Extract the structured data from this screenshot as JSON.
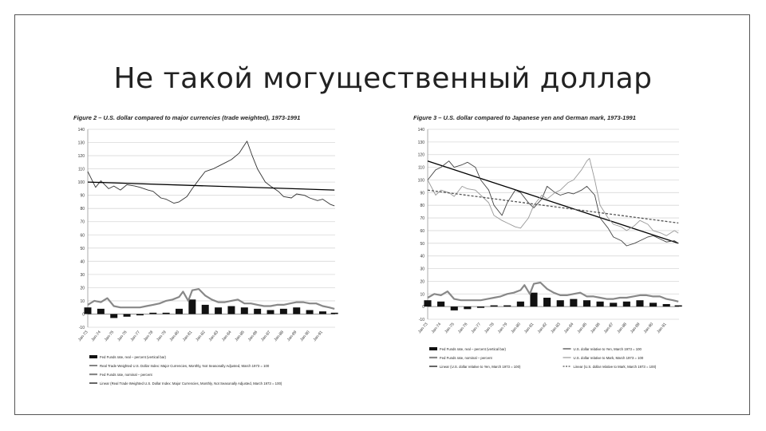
{
  "slide": {
    "title": "Не такой могущественный доллар"
  },
  "chart_data": [
    {
      "type": "line",
      "title": "Figure 2 – U.S. dollar compared to major currencies (trade weighted), 1973-1991",
      "y_ticks": [
        "140",
        "130",
        "120",
        "110",
        "100",
        "90",
        "80",
        "70",
        "60",
        "50",
        "40",
        "30",
        "20",
        "10",
        "0",
        "-10"
      ],
      "ylim": [
        -10,
        140
      ],
      "x_ticks": [
        "Jan-73",
        "Jan-74",
        "Jan-75",
        "Jan-76",
        "Jan-77",
        "Jan-78",
        "Jan-79",
        "Jan-80",
        "Jan-81",
        "Jan-82",
        "Jan-83",
        "Jan-84",
        "Jan-85",
        "Jan-86",
        "Jan-87",
        "Jan-88",
        "Jan-89",
        "Jan-90",
        "Jan-91"
      ],
      "series": [
        {
          "name": "Fed Funds rate, real – percent (vertical bar)",
          "kind": "bar",
          "color": "#111111",
          "x": [
            1973.0,
            1974.0,
            1975.0,
            1976.0,
            1977.0,
            1978.0,
            1979.0,
            1980.0,
            1981.0,
            1982.0,
            1983.0,
            1984.0,
            1985.0,
            1986.0,
            1987.0,
            1988.0,
            1989.0,
            1990.0,
            1991.0,
            1991.9
          ],
          "y": [
            5,
            4,
            -3,
            -2,
            -1,
            1,
            1,
            4,
            11,
            7,
            5,
            6,
            5,
            4,
            3,
            4,
            5,
            3,
            2,
            1
          ]
        },
        {
          "name": "Real Trade Weighted U.S. Dollar Index: Major Currencies, Monthly, Not Seasonally Adjusted, March 1973 = 100",
          "kind": "line",
          "color": "#333333",
          "x": [
            1973.0,
            1973.6,
            1974.0,
            1974.6,
            1975.0,
            1975.5,
            1976.0,
            1976.6,
            1977.0,
            1977.6,
            1978.0,
            1978.6,
            1979.0,
            1979.6,
            1980.0,
            1980.6,
            1981.0,
            1981.6,
            1982.0,
            1982.6,
            1983.0,
            1983.6,
            1984.0,
            1984.6,
            1985.0,
            1985.2,
            1985.6,
            1986.0,
            1986.6,
            1987.0,
            1987.6,
            1988.0,
            1988.6,
            1989.0,
            1989.6,
            1990.0,
            1990.6,
            1991.0,
            1991.6,
            1991.9
          ],
          "y": [
            108,
            96,
            101,
            95,
            97,
            94,
            98,
            97,
            96,
            94,
            93,
            88,
            87,
            84,
            85,
            89,
            95,
            103,
            108,
            110,
            112,
            115,
            117,
            122,
            128,
            131,
            120,
            110,
            100,
            97,
            93,
            89,
            88,
            91,
            90,
            88,
            86,
            87,
            83,
            82
          ]
        },
        {
          "name": "Fed Funds rate, nominal – percent",
          "kind": "line",
          "color": "#888888",
          "x": [
            1973.0,
            1973.5,
            1974.0,
            1974.5,
            1975.0,
            1975.5,
            1976.0,
            1976.5,
            1977.0,
            1977.5,
            1978.0,
            1978.5,
            1979.0,
            1979.5,
            1980.0,
            1980.3,
            1980.7,
            1981.0,
            1981.5,
            1982.0,
            1982.5,
            1983.0,
            1983.5,
            1984.0,
            1984.5,
            1985.0,
            1985.5,
            1986.0,
            1986.5,
            1987.0,
            1987.5,
            1988.0,
            1988.5,
            1989.0,
            1989.5,
            1990.0,
            1990.5,
            1991.0,
            1991.5,
            1991.9
          ],
          "y": [
            7,
            10,
            9,
            12,
            6,
            5,
            5,
            5,
            5,
            6,
            7,
            8,
            10,
            11,
            13,
            17,
            10,
            18,
            19,
            14,
            11,
            9,
            9,
            10,
            11,
            8,
            8,
            7,
            6,
            6,
            7,
            7,
            8,
            9,
            9,
            8,
            8,
            6,
            5,
            4
          ]
        },
        {
          "name": "Linear (Real Trade Weighted U.S. Dollar Index: Major Currencies, Monthly, Not Seasonally Adjusted, March 1973 = 100)",
          "kind": "line",
          "color": "#000000",
          "x": [
            1973.0,
            1991.9
          ],
          "y": [
            100,
            94
          ]
        }
      ]
    },
    {
      "type": "line",
      "title": "Figure 3 – U.S. dollar compared to Japanese yen and German mark, 1973-1991",
      "y_ticks": [
        "140",
        "130",
        "120",
        "110",
        "100",
        "90",
        "80",
        "70",
        "60",
        "50",
        "40",
        "30",
        "20",
        "10",
        "0",
        "-10"
      ],
      "ylim": [
        -10,
        140
      ],
      "x_ticks": [
        "Jan-73",
        "Jan-74",
        "Jan-75",
        "Jan-76",
        "Jan-77",
        "Jan-78",
        "Jan-79",
        "Jan-80",
        "Jan-81",
        "Jan-82",
        "Jan-83",
        "Jan-84",
        "Jan-85",
        "Jan-86",
        "Jan-87",
        "Jan-88",
        "Jan-89",
        "Jan-90",
        "Jan-91"
      ],
      "series": [
        {
          "name": "Fed Funds rate, real – percent (vertical bar)",
          "kind": "bar",
          "color": "#111111",
          "x": [
            1973.0,
            1974.0,
            1975.0,
            1976.0,
            1977.0,
            1978.0,
            1979.0,
            1980.0,
            1981.0,
            1982.0,
            1983.0,
            1984.0,
            1985.0,
            1986.0,
            1987.0,
            1988.0,
            1989.0,
            1990.0,
            1991.0,
            1991.9
          ],
          "y": [
            5,
            4,
            -3,
            -2,
            -1,
            1,
            1,
            4,
            11,
            7,
            5,
            6,
            5,
            4,
            3,
            4,
            5,
            3,
            2,
            1
          ]
        },
        {
          "name": "Fed Funds rate, nominal – percent",
          "kind": "line",
          "color": "#888888",
          "x": [
            1973.0,
            1973.5,
            1974.0,
            1974.5,
            1975.0,
            1975.5,
            1976.0,
            1976.5,
            1977.0,
            1977.5,
            1978.0,
            1978.5,
            1979.0,
            1979.5,
            1980.0,
            1980.3,
            1980.7,
            1981.0,
            1981.5,
            1982.0,
            1982.5,
            1983.0,
            1983.5,
            1984.0,
            1984.5,
            1985.0,
            1985.5,
            1986.0,
            1986.5,
            1987.0,
            1987.5,
            1988.0,
            1988.5,
            1989.0,
            1989.5,
            1990.0,
            1990.5,
            1991.0,
            1991.5,
            1991.9
          ],
          "y": [
            7,
            10,
            9,
            12,
            6,
            5,
            5,
            5,
            5,
            6,
            7,
            8,
            10,
            11,
            13,
            17,
            10,
            18,
            19,
            14,
            11,
            9,
            9,
            10,
            11,
            8,
            8,
            7,
            6,
            6,
            7,
            7,
            8,
            9,
            9,
            8,
            8,
            6,
            5,
            4
          ]
        },
        {
          "name": "Linear (U.S. dollar relative to Yen, March 1973 = 100)",
          "kind": "line",
          "color": "#000000",
          "x": [
            1973.0,
            1991.9
          ],
          "y": [
            115,
            50
          ]
        },
        {
          "name": "U.S. dollar relative to Yen, March 1973 = 100",
          "kind": "line",
          "color": "#444444",
          "x": [
            1973.0,
            1973.6,
            1974.0,
            1974.6,
            1975.0,
            1975.6,
            1976.0,
            1976.6,
            1977.0,
            1977.6,
            1978.0,
            1978.6,
            1979.0,
            1979.6,
            1980.0,
            1980.6,
            1981.0,
            1981.6,
            1982.0,
            1982.6,
            1983.0,
            1983.6,
            1984.0,
            1984.6,
            1985.0,
            1985.6,
            1986.0,
            1986.6,
            1987.0,
            1987.6,
            1988.0,
            1988.6,
            1989.0,
            1989.6,
            1990.0,
            1990.6,
            1991.0,
            1991.6,
            1991.9
          ],
          "y": [
            100,
            108,
            110,
            115,
            110,
            112,
            114,
            110,
            100,
            92,
            80,
            72,
            82,
            92,
            90,
            82,
            78,
            85,
            95,
            90,
            88,
            90,
            89,
            92,
            95,
            88,
            70,
            62,
            55,
            52,
            48,
            50,
            52,
            55,
            56,
            53,
            51,
            52,
            50
          ]
        },
        {
          "name": "U.S. dollar relative to Mark, March 1973 = 100",
          "kind": "line",
          "color": "#999999",
          "x": [
            1973.0,
            1973.6,
            1974.0,
            1974.6,
            1975.0,
            1975.6,
            1976.0,
            1976.6,
            1977.0,
            1977.6,
            1978.0,
            1978.6,
            1979.0,
            1979.6,
            1980.0,
            1980.6,
            1981.0,
            1981.6,
            1982.0,
            1982.6,
            1983.0,
            1983.6,
            1984.0,
            1984.6,
            1985.0,
            1985.2,
            1985.6,
            1986.0,
            1986.6,
            1987.0,
            1987.6,
            1988.0,
            1988.6,
            1989.0,
            1989.6,
            1990.0,
            1990.6,
            1991.0,
            1991.6,
            1991.9
          ],
          "y": [
            100,
            88,
            92,
            90,
            87,
            95,
            93,
            92,
            88,
            82,
            72,
            68,
            66,
            63,
            62,
            70,
            80,
            88,
            85,
            90,
            92,
            98,
            100,
            108,
            115,
            117,
            100,
            80,
            70,
            65,
            63,
            60,
            64,
            68,
            65,
            60,
            58,
            56,
            60,
            58
          ]
        },
        {
          "name": "Linear (U.S. dollar relative to Mark, March 1973 = 100)",
          "kind": "line",
          "color": "#555555",
          "dashed": true,
          "x": [
            1973.0,
            1991.9
          ],
          "y": [
            92,
            66
          ]
        }
      ]
    }
  ]
}
